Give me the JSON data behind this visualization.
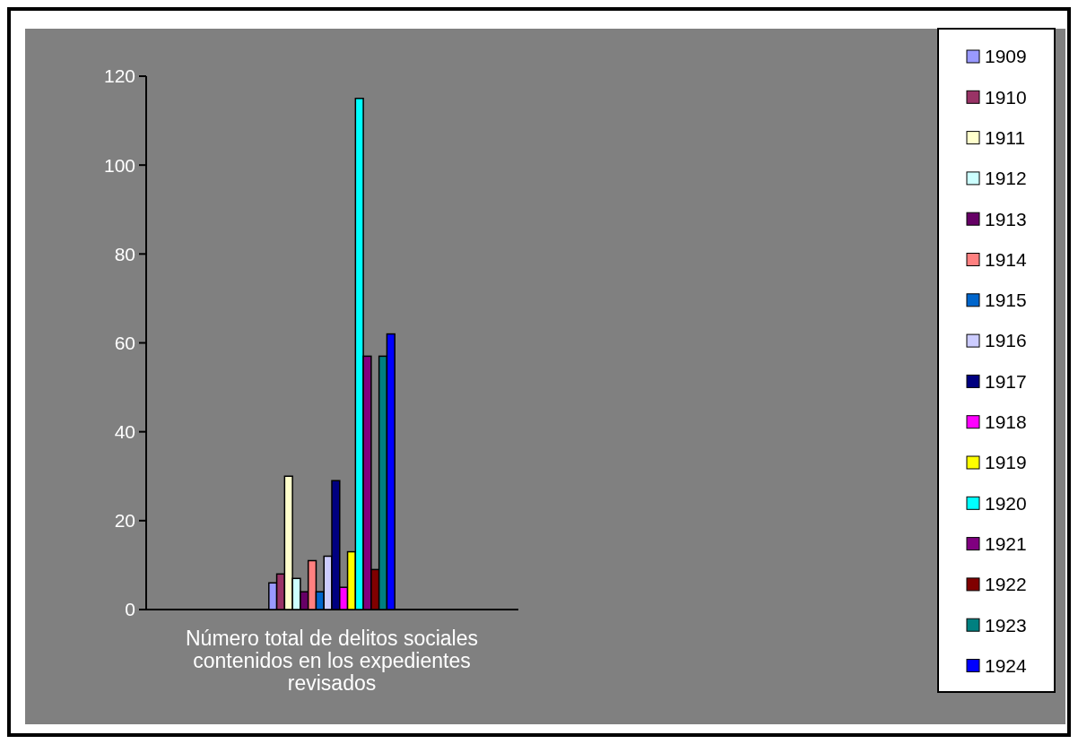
{
  "chart_data": {
    "type": "bar",
    "categories": [
      "Número total de delitos sociales contenidos en los expedientes revisados"
    ],
    "series": [
      {
        "name": "1909",
        "color": "#9999ff",
        "values": [
          6
        ]
      },
      {
        "name": "1910",
        "color": "#993366",
        "values": [
          8
        ]
      },
      {
        "name": "1911",
        "color": "#ffffcc",
        "values": [
          30
        ]
      },
      {
        "name": "1912",
        "color": "#ccffff",
        "values": [
          7
        ]
      },
      {
        "name": "1913",
        "color": "#660066",
        "values": [
          4
        ]
      },
      {
        "name": "1914",
        "color": "#ff8080",
        "values": [
          11
        ]
      },
      {
        "name": "1915",
        "color": "#0066cc",
        "values": [
          4
        ]
      },
      {
        "name": "1916",
        "color": "#ccccff",
        "values": [
          12
        ]
      },
      {
        "name": "1917",
        "color": "#000080",
        "values": [
          29
        ]
      },
      {
        "name": "1918",
        "color": "#ff00ff",
        "values": [
          5
        ]
      },
      {
        "name": "1919",
        "color": "#ffff00",
        "values": [
          13
        ]
      },
      {
        "name": "1920",
        "color": "#00ffff",
        "values": [
          115
        ]
      },
      {
        "name": "1921",
        "color": "#800080",
        "values": [
          57
        ]
      },
      {
        "name": "1922",
        "color": "#800000",
        "values": [
          9
        ]
      },
      {
        "name": "1923",
        "color": "#008080",
        "values": [
          57
        ]
      },
      {
        "name": "1924",
        "color": "#0000ff",
        "values": [
          62
        ]
      }
    ],
    "ylim": [
      0,
      120
    ],
    "yticks": [
      0,
      20,
      40,
      60,
      80,
      100,
      120
    ],
    "grid": false,
    "legend": "right"
  }
}
